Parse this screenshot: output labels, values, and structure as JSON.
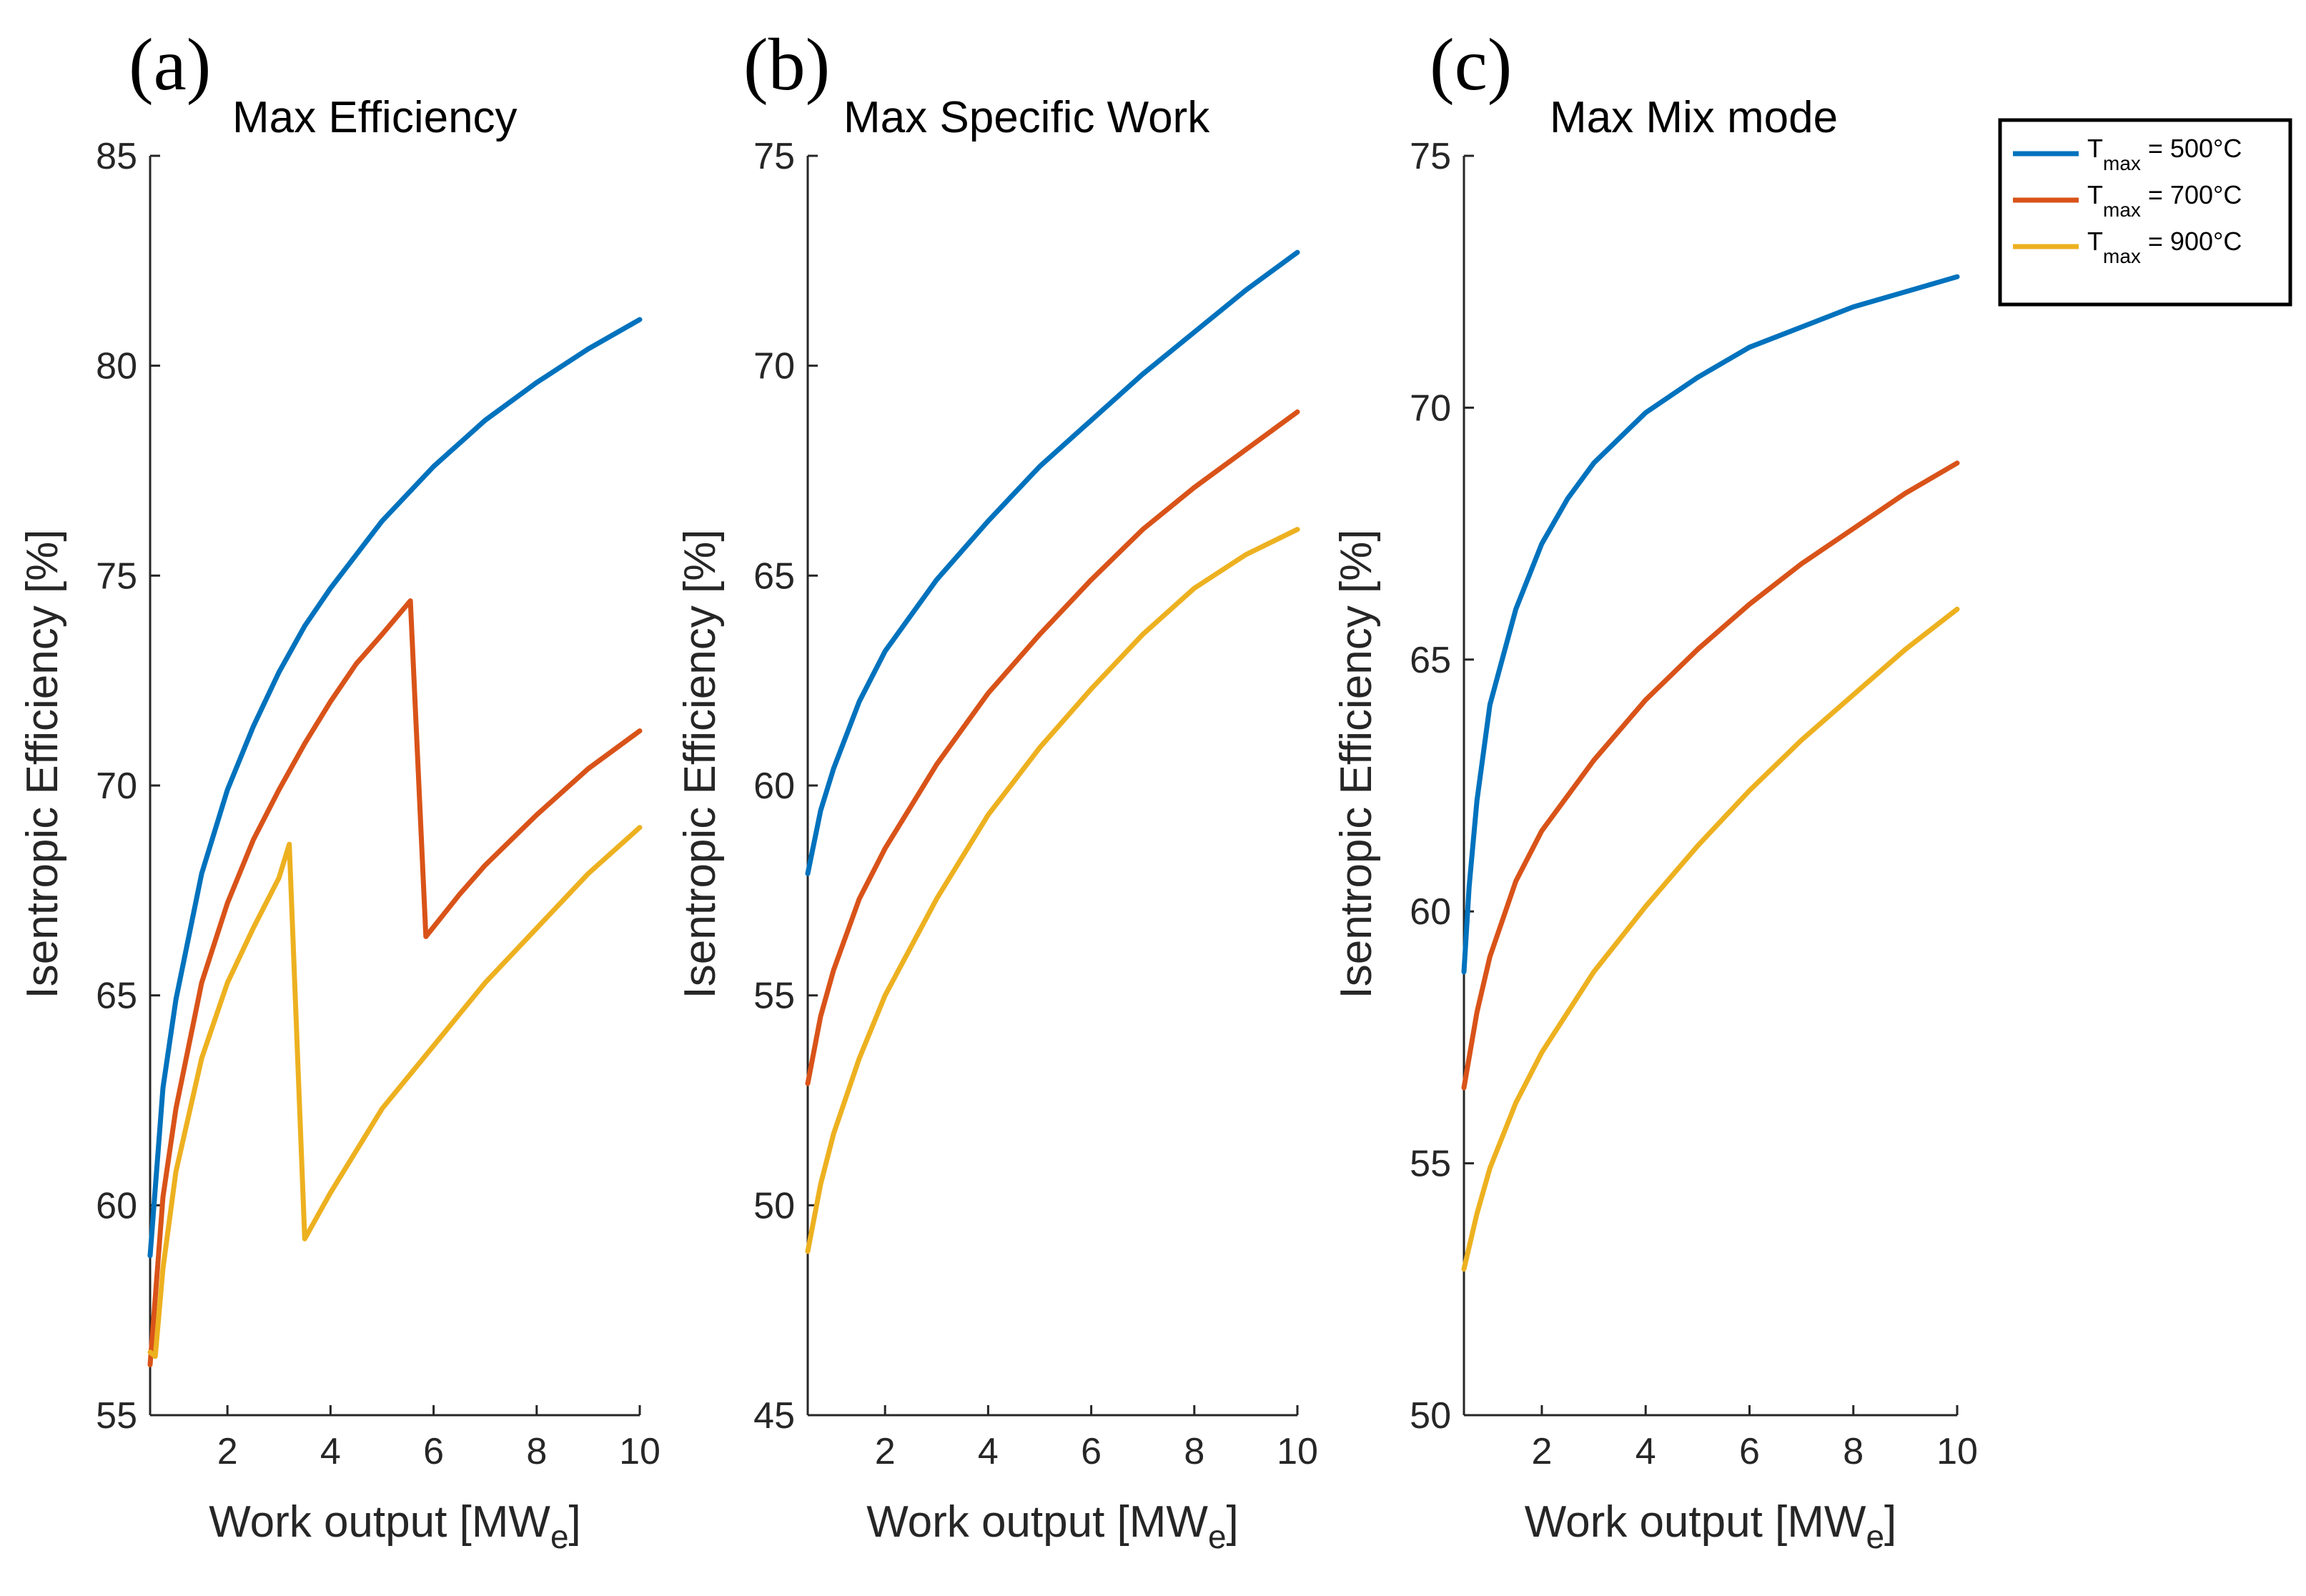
{
  "chart_data": [
    {
      "type": "line",
      "panel_label": "(a)",
      "title": "Max Efficiency",
      "xlabel": "Work output [MW",
      "xlabel_sub": "e",
      "xlabel_close": "]",
      "ylabel": "Isentropic Efficiency [%]",
      "xlim": [
        0.5,
        10
      ],
      "ylim": [
        55,
        85
      ],
      "xticks": [
        2,
        4,
        6,
        8,
        10
      ],
      "yticks": [
        55,
        60,
        65,
        70,
        75,
        80,
        85
      ],
      "series": [
        {
          "name": "Tmax = 500°C",
          "color": "#0072BD",
          "x": [
            0.5,
            0.75,
            1.0,
            1.5,
            2.0,
            2.5,
            3.0,
            3.5,
            4.0,
            5.0,
            6.0,
            7.0,
            8.0,
            9.0,
            10.0
          ],
          "y": [
            58.8,
            62.8,
            64.9,
            67.9,
            69.9,
            71.4,
            72.7,
            73.8,
            74.7,
            76.3,
            77.6,
            78.7,
            79.6,
            80.4,
            81.1
          ]
        },
        {
          "name": "Tmax = 700°C",
          "color": "#D95319",
          "x": [
            0.5,
            0.75,
            1.0,
            1.5,
            2.0,
            2.5,
            3.0,
            3.5,
            4.0,
            4.5,
            5.0,
            5.55,
            5.85,
            6.5,
            7.0,
            8.0,
            9.0,
            10.0
          ],
          "y": [
            56.2,
            60.2,
            62.3,
            65.3,
            67.2,
            68.7,
            69.9,
            71.0,
            72.0,
            72.9,
            73.6,
            74.4,
            66.4,
            67.4,
            68.1,
            69.3,
            70.4,
            71.3
          ]
        },
        {
          "name": "Tmax = 900°C",
          "color": "#EDB120",
          "x": [
            0.5,
            0.6,
            0.75,
            1.0,
            1.5,
            2.0,
            2.5,
            3.0,
            3.2,
            3.5,
            4.0,
            5.0,
            6.0,
            7.0,
            8.0,
            9.0,
            10.0
          ],
          "y": [
            56.5,
            56.4,
            58.5,
            60.8,
            63.5,
            65.3,
            66.6,
            67.8,
            68.6,
            59.2,
            60.3,
            62.3,
            63.8,
            65.3,
            66.6,
            67.9,
            69.0
          ]
        }
      ]
    },
    {
      "type": "line",
      "panel_label": "(b)",
      "title": "Max Specific Work",
      "xlabel": "Work output [MW",
      "xlabel_sub": "e",
      "xlabel_close": "]",
      "ylabel": "Isentropic Efficiency [%]",
      "xlim": [
        0.5,
        10
      ],
      "ylim": [
        45,
        75
      ],
      "xticks": [
        2,
        4,
        6,
        8,
        10
      ],
      "yticks": [
        45,
        50,
        55,
        60,
        65,
        70,
        75
      ],
      "series": [
        {
          "name": "Tmax = 500°C",
          "color": "#0072BD",
          "x": [
            0.5,
            0.75,
            1.0,
            1.5,
            2.0,
            3.0,
            4.0,
            5.0,
            6.0,
            7.0,
            8.0,
            9.0,
            10.0
          ],
          "y": [
            57.9,
            59.4,
            60.4,
            62.0,
            63.2,
            64.9,
            66.3,
            67.6,
            68.7,
            69.8,
            70.8,
            71.8,
            72.7
          ]
        },
        {
          "name": "Tmax = 700°C",
          "color": "#D95319",
          "x": [
            0.5,
            0.75,
            1.0,
            1.5,
            2.0,
            3.0,
            4.0,
            5.0,
            6.0,
            7.0,
            8.0,
            9.0,
            10.0
          ],
          "y": [
            52.9,
            54.5,
            55.6,
            57.3,
            58.5,
            60.5,
            62.2,
            63.6,
            64.9,
            66.1,
            67.1,
            68.0,
            68.9
          ]
        },
        {
          "name": "Tmax = 900°C",
          "color": "#EDB120",
          "x": [
            0.5,
            0.75,
            1.0,
            1.5,
            2.0,
            3.0,
            4.0,
            5.0,
            6.0,
            7.0,
            8.0,
            9.0,
            10.0
          ],
          "y": [
            48.9,
            50.5,
            51.7,
            53.5,
            55.0,
            57.3,
            59.3,
            60.9,
            62.3,
            63.6,
            64.7,
            65.5,
            66.1
          ]
        }
      ]
    },
    {
      "type": "line",
      "panel_label": "(c)",
      "title": "Max Mix mode",
      "xlabel": "Work output [MW",
      "xlabel_sub": "e",
      "xlabel_close": "]",
      "ylabel": "Isentropic Efficiency [%]",
      "xlim": [
        0.5,
        10
      ],
      "ylim": [
        50,
        75
      ],
      "xticks": [
        2,
        4,
        6,
        8,
        10
      ],
      "yticks": [
        50,
        55,
        60,
        65,
        70,
        75
      ],
      "series": [
        {
          "name": "Tmax = 500°C",
          "color": "#0072BD",
          "x": [
            0.5,
            0.6,
            0.75,
            1.0,
            1.5,
            2.0,
            2.5,
            3.0,
            4.0,
            5.0,
            6.0,
            7.0,
            8.0,
            9.0,
            10.0
          ],
          "y": [
            58.8,
            60.5,
            62.2,
            64.1,
            66.0,
            67.3,
            68.2,
            68.9,
            69.9,
            70.6,
            71.2,
            71.6,
            72.0,
            72.3,
            72.6
          ]
        },
        {
          "name": "Tmax = 700°C",
          "color": "#D95319",
          "x": [
            0.5,
            0.75,
            1.0,
            1.5,
            2.0,
            3.0,
            4.0,
            5.0,
            6.0,
            7.0,
            8.0,
            9.0,
            10.0
          ],
          "y": [
            56.5,
            58.0,
            59.1,
            60.6,
            61.6,
            63.0,
            64.2,
            65.2,
            66.1,
            66.9,
            67.6,
            68.3,
            68.9
          ]
        },
        {
          "name": "Tmax = 900°C",
          "color": "#EDB120",
          "x": [
            0.5,
            0.75,
            1.0,
            1.5,
            2.0,
            3.0,
            4.0,
            5.0,
            6.0,
            7.0,
            8.0,
            9.0,
            10.0
          ],
          "y": [
            52.9,
            54.0,
            54.9,
            56.2,
            57.2,
            58.8,
            60.1,
            61.3,
            62.4,
            63.4,
            64.3,
            65.2,
            66.0
          ]
        }
      ]
    }
  ],
  "legend": {
    "placement": "top-right",
    "entries": [
      {
        "base": "T",
        "sub": "max",
        "rest": " = 500°C",
        "color": "#0072BD"
      },
      {
        "base": "T",
        "sub": "max",
        "rest": " = 700°C",
        "color": "#D95319"
      },
      {
        "base": "T",
        "sub": "max",
        "rest": " = 900°C",
        "color": "#EDB120"
      }
    ]
  }
}
